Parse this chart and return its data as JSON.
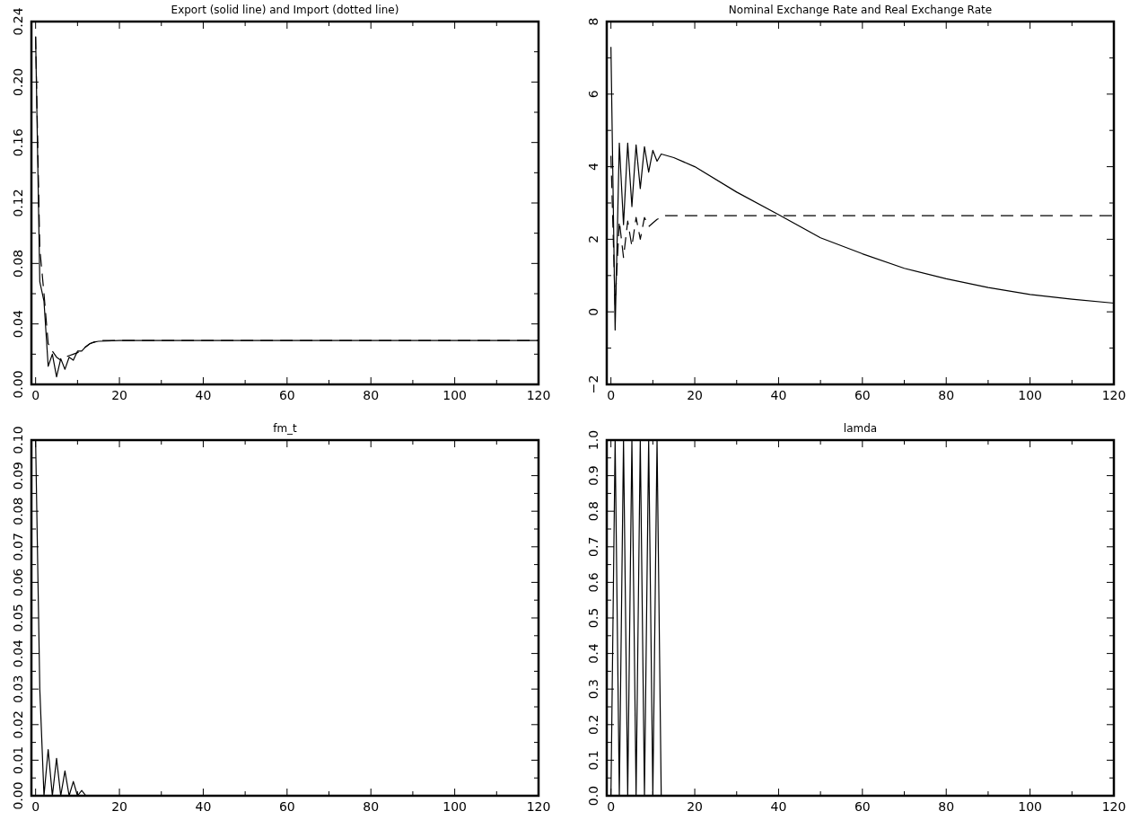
{
  "chart_data": [
    {
      "type": "line",
      "title": "Export (solid line) and Import (dotted line)",
      "xlim": [
        -1,
        120
      ],
      "xticks": [
        0,
        {
          "value": 10,
          "label": null
        },
        20,
        {
          "value": 30,
          "label": null
        },
        40,
        {
          "value": 50,
          "label": null
        },
        60,
        {
          "value": 70,
          "label": null
        },
        80,
        {
          "value": 90,
          "label": null
        },
        100,
        {
          "value": 110,
          "label": null
        },
        120
      ],
      "ylim": [
        0,
        0.24
      ],
      "yticks": [
        {
          "value": 0,
          "label": "0.00"
        },
        {
          "value": 0.02,
          "label": null
        },
        {
          "value": 0.04,
          "label": "0.04"
        },
        {
          "value": 0.06,
          "label": null
        },
        {
          "value": 0.08,
          "label": "0.08"
        },
        {
          "value": 0.1,
          "label": null
        },
        {
          "value": 0.12,
          "label": "0.12"
        },
        {
          "value": 0.14,
          "label": null
        },
        {
          "value": 0.16,
          "label": "0.16"
        },
        {
          "value": 0.18,
          "label": null
        },
        {
          "value": 0.2,
          "label": "0.20"
        },
        {
          "value": 0.22,
          "label": null
        },
        {
          "value": 0.24,
          "label": "0.24"
        }
      ],
      "series": [
        {
          "color": "#000000",
          "line_style": "solid",
          "x": [
            0,
            1,
            2,
            3,
            4,
            5,
            6,
            7,
            8,
            9,
            10,
            11,
            12,
            13,
            14,
            15,
            20,
            40,
            60,
            80,
            100,
            120
          ],
          "values": [
            0.23,
            0.068,
            0.055,
            0.012,
            0.02,
            0.005,
            0.017,
            0.01,
            0.018,
            0.016,
            0.022,
            0.022,
            0.025,
            0.027,
            0.028,
            0.0285,
            0.029,
            0.029,
            0.029,
            0.029,
            0.029,
            0.029
          ]
        },
        {
          "color": "#000000",
          "line_style": "dashed",
          "x": [
            0,
            1,
            2,
            3,
            4,
            5,
            6,
            7,
            8,
            9,
            10,
            11,
            12,
            13,
            14,
            15,
            20,
            40,
            60,
            80,
            100,
            120
          ],
          "values": [
            0.23,
            0.09,
            0.06,
            0.027,
            0.022,
            0.018,
            0.016,
            0.018,
            0.019,
            0.02,
            0.021,
            0.023,
            0.025,
            0.027,
            0.028,
            0.029,
            0.029,
            0.029,
            0.029,
            0.029,
            0.029,
            0.029
          ]
        }
      ]
    },
    {
      "type": "line",
      "title": "Nominal Exchange Rate and Real Exchange Rate",
      "xlim": [
        -1,
        120
      ],
      "xticks": [
        0,
        {
          "value": 10,
          "label": null
        },
        20,
        {
          "value": 30,
          "label": null
        },
        40,
        {
          "value": 50,
          "label": null
        },
        60,
        {
          "value": 70,
          "label": null
        },
        80,
        {
          "value": 90,
          "label": null
        },
        100,
        {
          "value": 110,
          "label": null
        },
        120
      ],
      "ylim": [
        -2,
        8
      ],
      "yticks": [
        {
          "value": -2,
          "label": "−2"
        },
        {
          "value": -1,
          "label": null
        },
        0,
        {
          "value": 1,
          "label": null
        },
        2,
        {
          "value": 3,
          "label": null
        },
        4,
        {
          "value": 5,
          "label": null
        },
        6,
        {
          "value": 7,
          "label": null
        },
        8
      ],
      "series": [
        {
          "color": "#000000",
          "line_style": "solid",
          "x": [
            0,
            1,
            2,
            3,
            4,
            5,
            6,
            7,
            8,
            9,
            10,
            11,
            12,
            15,
            20,
            30,
            40,
            50,
            60,
            70,
            80,
            90,
            100,
            110,
            120
          ],
          "values": [
            7.3,
            -0.5,
            4.65,
            2.4,
            4.65,
            2.9,
            4.6,
            3.4,
            4.55,
            3.85,
            4.45,
            4.15,
            4.35,
            4.25,
            4.0,
            3.3,
            2.68,
            2.04,
            1.6,
            1.2,
            0.91,
            0.67,
            0.48,
            0.35,
            0.24
          ]
        },
        {
          "color": "#000000",
          "line_style": "dashed",
          "x": [
            0,
            1,
            2,
            3,
            4,
            5,
            6,
            7,
            8,
            9,
            10,
            11,
            12,
            13,
            120
          ],
          "values": [
            4.3,
            0.2,
            2.5,
            1.5,
            2.5,
            1.8,
            2.6,
            2.0,
            2.6,
            2.35,
            2.45,
            2.55,
            2.6,
            2.65,
            2.65
          ]
        }
      ]
    },
    {
      "type": "line",
      "title": "fm_t",
      "xlim": [
        -1,
        120
      ],
      "xticks": [
        0,
        {
          "value": 10,
          "label": null
        },
        20,
        {
          "value": 30,
          "label": null
        },
        40,
        {
          "value": 50,
          "label": null
        },
        60,
        {
          "value": 70,
          "label": null
        },
        80,
        {
          "value": 90,
          "label": null
        },
        100,
        {
          "value": 110,
          "label": null
        },
        120
      ],
      "ylim": [
        0,
        0.1
      ],
      "yticks": [
        {
          "value": 0,
          "label": "0.00"
        },
        {
          "value": 0.005,
          "label": null
        },
        {
          "value": 0.01,
          "label": "0.01"
        },
        {
          "value": 0.015,
          "label": null
        },
        {
          "value": 0.02,
          "label": "0.02"
        },
        {
          "value": 0.025,
          "label": null
        },
        {
          "value": 0.03,
          "label": "0.03"
        },
        {
          "value": 0.035,
          "label": null
        },
        {
          "value": 0.04,
          "label": "0.04"
        },
        {
          "value": 0.045,
          "label": null
        },
        {
          "value": 0.05,
          "label": "0.05"
        },
        {
          "value": 0.055,
          "label": null
        },
        {
          "value": 0.06,
          "label": "0.06"
        },
        {
          "value": 0.065,
          "label": null
        },
        {
          "value": 0.07,
          "label": "0.07"
        },
        {
          "value": 0.075,
          "label": null
        },
        {
          "value": 0.08,
          "label": "0.08"
        },
        {
          "value": 0.085,
          "label": null
        },
        {
          "value": 0.09,
          "label": "0.09"
        },
        {
          "value": 0.095,
          "label": null
        },
        {
          "value": 0.1,
          "label": "0.10"
        }
      ],
      "series": [
        {
          "color": "#000000",
          "line_style": "solid",
          "x": [
            0,
            1,
            2,
            3,
            4,
            5,
            6,
            7,
            8,
            9,
            10,
            11,
            12,
            13,
            120
          ],
          "values": [
            0.1,
            0.03,
            0,
            0.013,
            0,
            0.0105,
            0,
            0.007,
            0,
            0.004,
            0,
            0.0015,
            0,
            0,
            0
          ]
        }
      ]
    },
    {
      "type": "line",
      "title": "lamda",
      "xlim": [
        -1,
        120
      ],
      "xticks": [
        0,
        {
          "value": 10,
          "label": null
        },
        20,
        {
          "value": 30,
          "label": null
        },
        40,
        {
          "value": 50,
          "label": null
        },
        60,
        {
          "value": 70,
          "label": null
        },
        80,
        {
          "value": 90,
          "label": null
        },
        100,
        {
          "value": 110,
          "label": null
        },
        120
      ],
      "ylim": [
        0,
        1
      ],
      "yticks": [
        {
          "value": 0,
          "label": "0.0"
        },
        {
          "value": 0.05,
          "label": null
        },
        {
          "value": 0.1,
          "label": "0.1"
        },
        {
          "value": 0.15,
          "label": null
        },
        {
          "value": 0.2,
          "label": "0.2"
        },
        {
          "value": 0.25,
          "label": null
        },
        {
          "value": 0.3,
          "label": "0.3"
        },
        {
          "value": 0.35,
          "label": null
        },
        {
          "value": 0.4,
          "label": "0.4"
        },
        {
          "value": 0.45,
          "label": null
        },
        {
          "value": 0.5,
          "label": "0.5"
        },
        {
          "value": 0.55,
          "label": null
        },
        {
          "value": 0.6,
          "label": "0.6"
        },
        {
          "value": 0.65,
          "label": null
        },
        {
          "value": 0.7,
          "label": "0.7"
        },
        {
          "value": 0.75,
          "label": null
        },
        {
          "value": 0.8,
          "label": "0.8"
        },
        {
          "value": 0.85,
          "label": null
        },
        {
          "value": 0.9,
          "label": "0.9"
        },
        {
          "value": 0.95,
          "label": null
        },
        {
          "value": 1,
          "label": "1.0"
        }
      ],
      "series": [
        {
          "color": "#000000",
          "line_style": "solid",
          "x": [
            0,
            1,
            2,
            3,
            4,
            5,
            6,
            7,
            8,
            9,
            10,
            11,
            12,
            13,
            120
          ],
          "values": [
            0,
            1,
            0,
            1,
            0,
            1,
            0,
            1,
            0,
            1,
            0,
            1,
            0,
            0,
            0
          ]
        }
      ]
    }
  ]
}
